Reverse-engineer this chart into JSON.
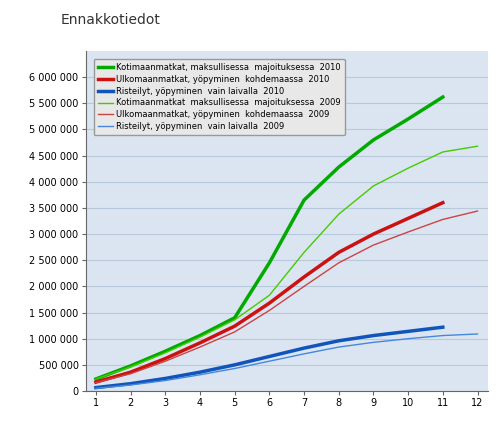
{
  "title": "Ennakkotiedot",
  "months_2010": [
    1,
    2,
    3,
    4,
    5,
    6,
    7,
    8,
    9,
    10,
    11
  ],
  "months_2009": [
    1,
    2,
    3,
    4,
    5,
    6,
    7,
    8,
    9,
    10,
    11,
    12
  ],
  "koti_2010": [
    230000,
    480000,
    760000,
    1060000,
    1400000,
    2450000,
    3650000,
    4280000,
    4800000,
    5200000,
    5620000
  ],
  "ulko_2010": [
    170000,
    360000,
    620000,
    920000,
    1240000,
    1680000,
    2180000,
    2650000,
    3000000,
    3300000,
    3600000
  ],
  "rist_2010": [
    65000,
    140000,
    240000,
    360000,
    500000,
    660000,
    820000,
    960000,
    1060000,
    1140000,
    1220000
  ],
  "koti_2009": [
    230000,
    460000,
    730000,
    1030000,
    1360000,
    1830000,
    2650000,
    3380000,
    3920000,
    4260000,
    4570000,
    4680000
  ],
  "ulko_2009": [
    160000,
    330000,
    570000,
    840000,
    1130000,
    1540000,
    2000000,
    2450000,
    2790000,
    3040000,
    3280000,
    3440000
  ],
  "rist_2009": [
    50000,
    115000,
    200000,
    310000,
    430000,
    570000,
    710000,
    840000,
    930000,
    1000000,
    1060000,
    1090000
  ],
  "color_green": "#00AA00",
  "color_red": "#CC1111",
  "color_blue": "#1155BB",
  "color_green_thin": "#44CC00",
  "color_red_thin": "#CC4444",
  "color_blue_thin": "#4488DD",
  "legend_labels": [
    "Kotimaanmatkat, maksullisessa  majoituksessa  2010",
    "Ulkomaanmatkat, yöpyminen  kohdemaassa  2010",
    "Risteilyt, yöpyminen  vain laivalla  2010",
    "Kotimaanmatkat  maksullisessa  majoituksessa  2009",
    "Ulkomaanmatkat, yöpyminen  kohdemaassa  2009",
    "Risteilyt, yöpyminen  vain laivalla  2009"
  ],
  "ylim": [
    0,
    6500000
  ],
  "yticks": [
    0,
    500000,
    1000000,
    1500000,
    2000000,
    2500000,
    3000000,
    3500000,
    4000000,
    4500000,
    5000000,
    5500000,
    6000000
  ],
  "xlim_min": 0.7,
  "xlim_max": 12.3,
  "xticks": [
    1,
    2,
    3,
    4,
    5,
    6,
    7,
    8,
    9,
    10,
    11,
    12
  ],
  "background_color": "#FFFFFF",
  "plot_bg_color": "#DBE5F1"
}
